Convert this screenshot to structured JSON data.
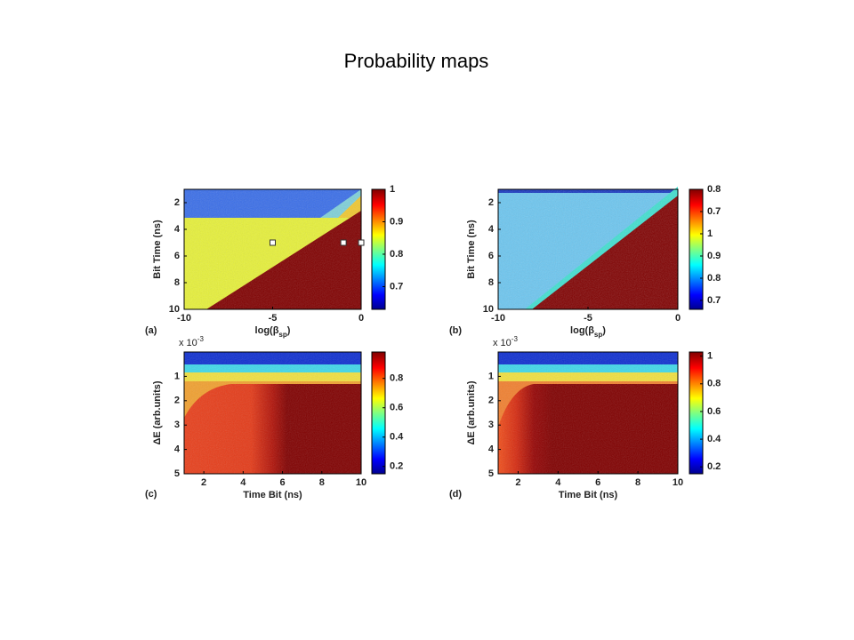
{
  "title": "Probability maps",
  "chart_data": [
    {
      "type": "heatmap",
      "panel_label": "(a)",
      "xlabel_parts": [
        "log(β",
        "sp",
        ")"
      ],
      "ylabel": "Bit Time (ns)",
      "xlim": [
        -10,
        0
      ],
      "xticks": [
        -10,
        -5,
        0
      ],
      "ylim": [
        1,
        10
      ],
      "yticks": [
        2,
        4,
        6,
        8,
        10
      ],
      "clim": [
        0.63,
        1
      ],
      "cticks": [
        0.7,
        0.8,
        0.9,
        1
      ],
      "markers": {
        "x": [
          -5,
          -1,
          0
        ],
        "y": [
          5,
          5,
          5
        ]
      }
    },
    {
      "type": "heatmap",
      "panel_label": "(b)",
      "xlabel_parts": [
        "log(β",
        "sp",
        ")"
      ],
      "ylabel": "Bit Time (ns)",
      "xlim": [
        -10,
        0
      ],
      "xticks": [
        -10,
        -5,
        0
      ],
      "ylim": [
        1,
        10
      ],
      "yticks": [
        2,
        4,
        6,
        8,
        10
      ],
      "cbar_labels": [
        "0.8",
        "0.7",
        "1",
        "0.9",
        "0.8",
        "0.7"
      ]
    },
    {
      "type": "heatmap",
      "panel_label": "(c)",
      "xlabel_parts": [
        "Time Bit (ns)"
      ],
      "ylabel": "ΔE (arb.units)",
      "y_exponent_parts": [
        "x 10",
        "-3"
      ],
      "xlim": [
        1,
        10
      ],
      "xticks": [
        2,
        4,
        6,
        8,
        10
      ],
      "ylim": [
        0,
        5
      ],
      "yticks": [
        1,
        2,
        3,
        4,
        5
      ],
      "clim": [
        0.15,
        0.98
      ],
      "cticks": [
        0.2,
        0.4,
        0.6,
        0.8
      ]
    },
    {
      "type": "heatmap",
      "panel_label": "(d)",
      "xlabel_parts": [
        "Time Bit (ns)"
      ],
      "ylabel": "ΔE (arb.units)",
      "y_exponent_parts": [
        "x 10",
        "-3"
      ],
      "xlim": [
        1,
        10
      ],
      "xticks": [
        2,
        4,
        6,
        8,
        10
      ],
      "ylim": [
        0,
        5
      ],
      "yticks": [
        1,
        2,
        3,
        4,
        5
      ],
      "clim": [
        0.15,
        1.03
      ],
      "cticks": [
        0.2,
        0.4,
        0.6,
        0.8,
        1
      ]
    }
  ]
}
